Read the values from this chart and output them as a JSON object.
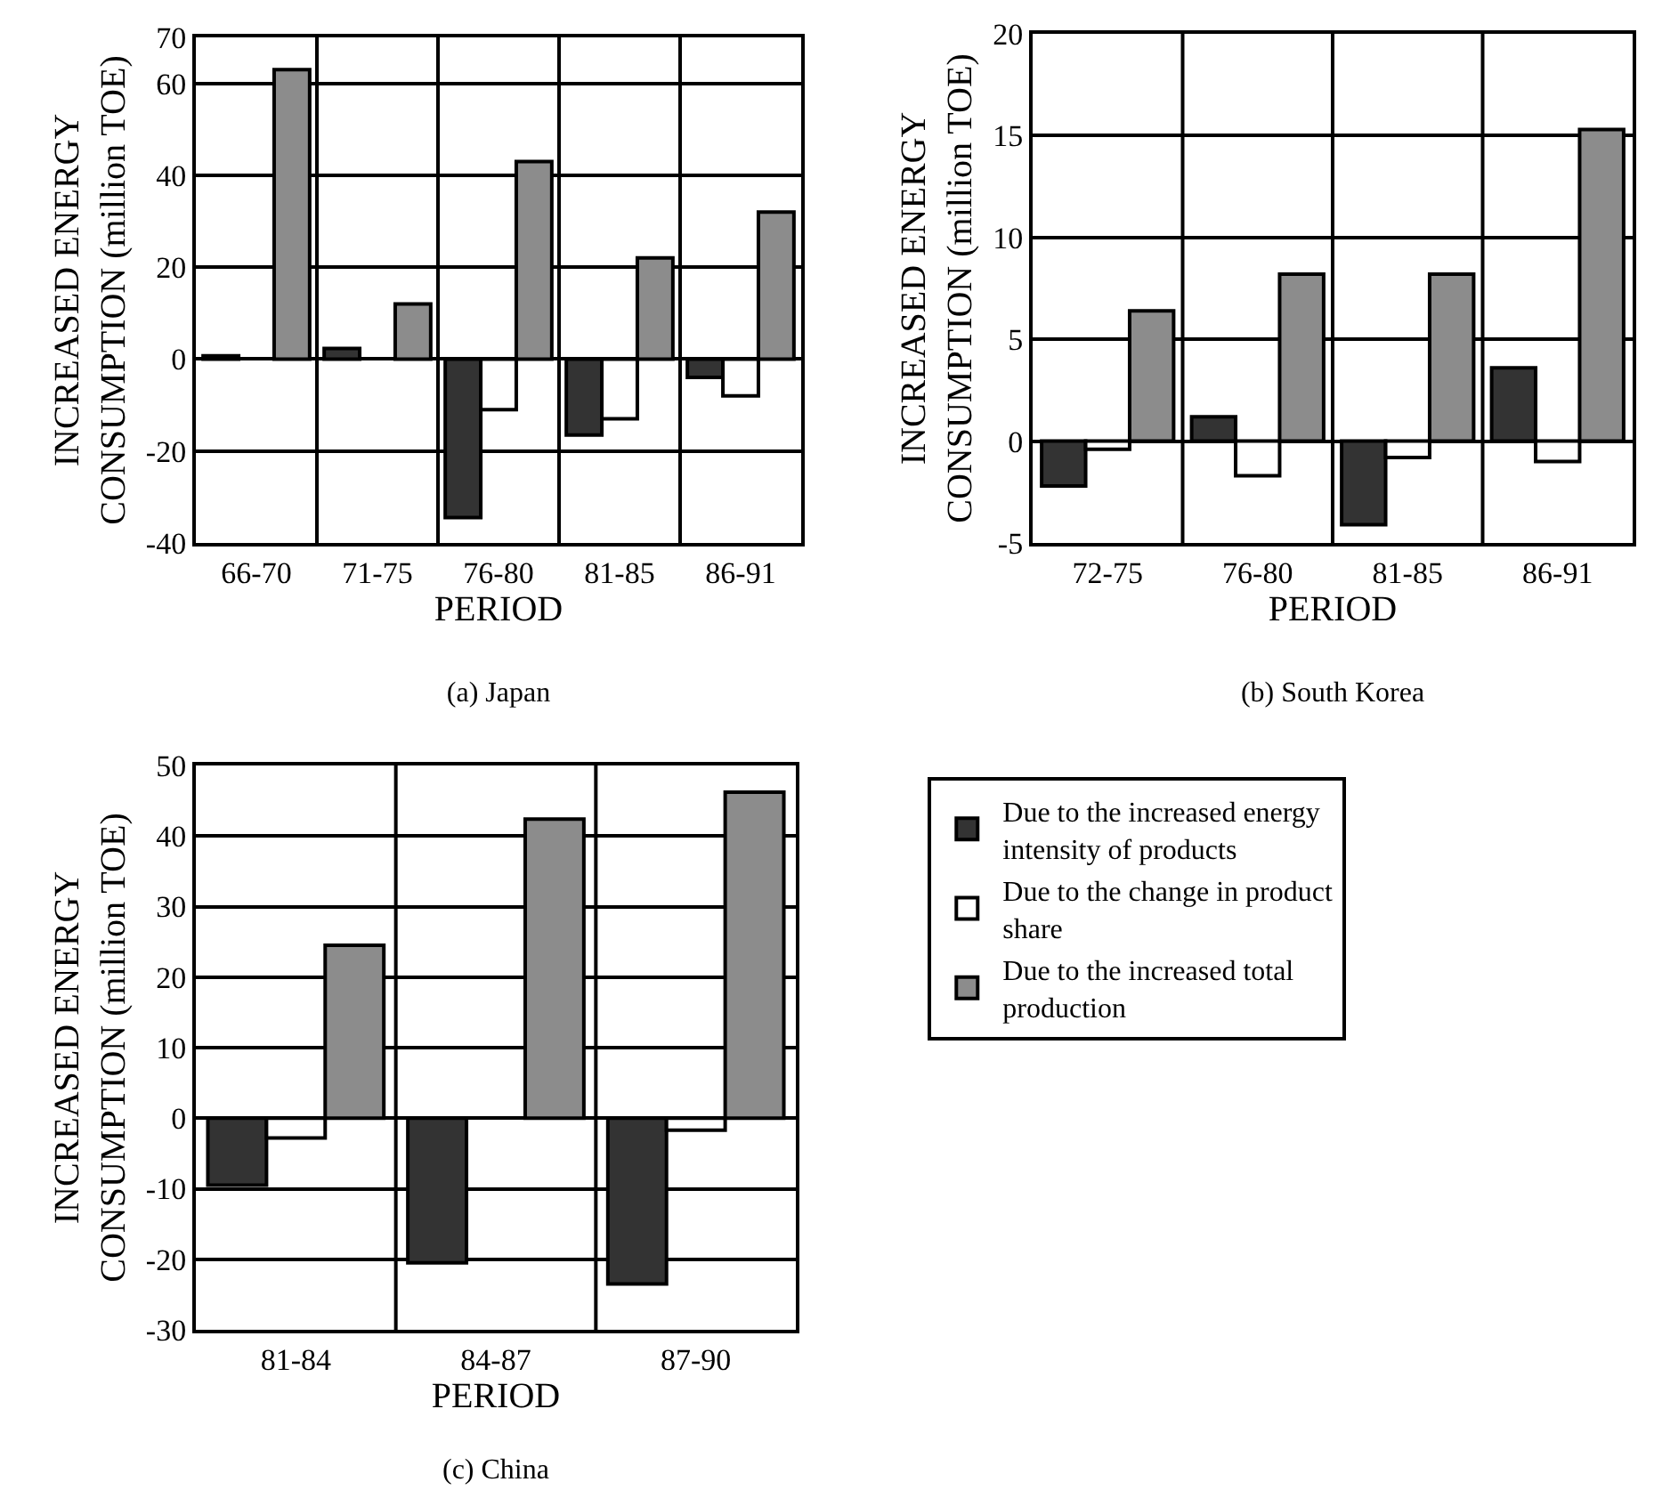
{
  "chart_data": [
    {
      "type": "bar",
      "title": "(a) Japan",
      "xlabel": "PERIOD",
      "ylabel": "INCREASED ENERGY CONSUMPTION (million TOE)",
      "categories": [
        "66-70",
        "71-75",
        "76-80",
        "81-85",
        "86-91"
      ],
      "ylim": [
        -40,
        70
      ],
      "yticks": [
        -40,
        -20,
        0,
        20,
        40,
        60,
        70
      ],
      "grid": true,
      "legend": false,
      "series": [
        {
          "color": "#333333",
          "values": [
            0.7,
            2.3,
            -34.5,
            -16.5,
            -4
          ]
        },
        {
          "color": "#ffffff",
          "values": [
            null,
            null,
            -11,
            -13,
            -8
          ]
        },
        {
          "color": "#8c8c8c",
          "values": [
            63,
            12,
            43,
            22,
            32
          ]
        }
      ]
    },
    {
      "type": "bar",
      "title": "(b) South Korea",
      "xlabel": "PERIOD",
      "ylabel": "INCREASED ENERGY CONSUMPTION (million TOE)",
      "categories": [
        "72-75",
        "76-80",
        "81-85",
        "86-91"
      ],
      "ylim": [
        -5,
        20
      ],
      "yticks": [
        -5,
        0,
        5,
        10,
        15,
        20
      ],
      "grid": true,
      "legend": false,
      "series": [
        {
          "color": "#333333",
          "values": [
            -2.2,
            1.2,
            -4.1,
            3.6
          ]
        },
        {
          "color": "#ffffff",
          "values": [
            -0.4,
            -1.7,
            -0.8,
            -1.0
          ]
        },
        {
          "color": "#8c8c8c",
          "values": [
            6.4,
            8.2,
            8.2,
            15.3
          ]
        }
      ]
    },
    {
      "type": "bar",
      "title": "(c) China",
      "xlabel": "PERIOD",
      "ylabel": "INCREASED ENERGY CONSUMPTION (million TOE)",
      "categories": [
        "81-84",
        "84-87",
        "87-90"
      ],
      "ylim": [
        -30,
        50
      ],
      "yticks": [
        -30,
        -20,
        -10,
        0,
        10,
        20,
        30,
        40,
        50
      ],
      "grid": true,
      "legend": "right",
      "series": [
        {
          "name": "Due to the increased energy intensity of products",
          "color": "#333333",
          "values": [
            -9.5,
            -20.5,
            -23.5
          ]
        },
        {
          "name": "Due to the change in product share",
          "color": "#ffffff",
          "values": [
            -2.8,
            null,
            -1.7
          ]
        },
        {
          "name": "Due to the increased total production",
          "color": "#8c8c8c",
          "values": [
            24.5,
            42.4,
            46.2
          ]
        }
      ]
    }
  ]
}
